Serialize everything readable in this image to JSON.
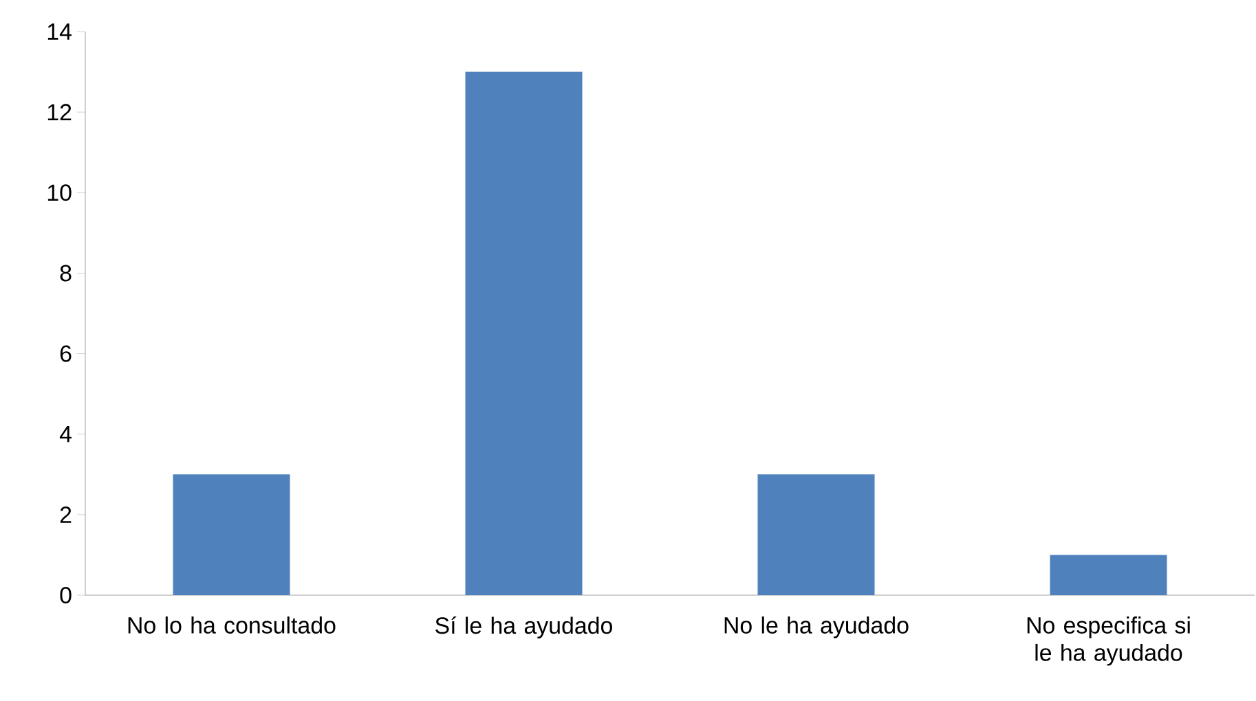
{
  "chart_data": {
    "type": "bar",
    "categories": [
      "No lo ha consultado",
      "Sí le ha ayudado",
      "No le ha ayudado",
      "No especifica si le ha ayudado"
    ],
    "values": [
      3,
      13,
      3,
      1
    ],
    "color": "#4f81bd",
    "ylim": [
      0,
      14
    ],
    "yticks": [
      0,
      2,
      4,
      6,
      8,
      10,
      12,
      14
    ],
    "grid": false
  }
}
